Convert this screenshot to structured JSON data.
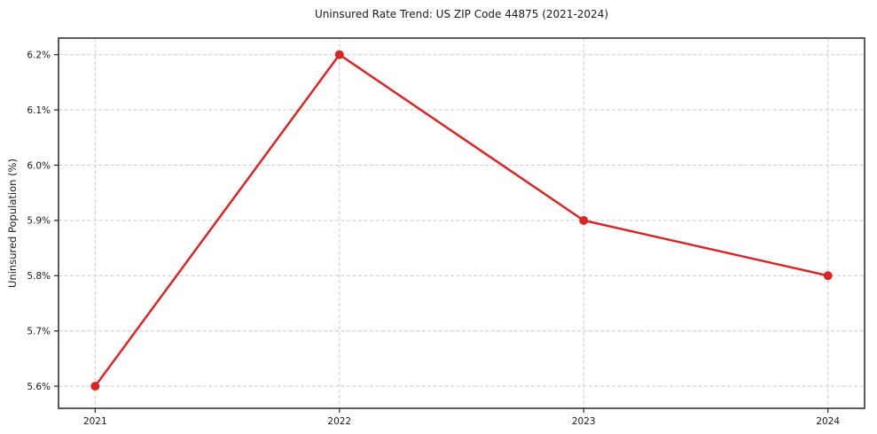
{
  "chart_data": {
    "type": "line",
    "title": "Uninsured Rate Trend: US ZIP Code 44875 (2021-2024)",
    "xlabel": "",
    "ylabel": "Uninsured Population (%)",
    "x": [
      2021,
      2022,
      2023,
      2024
    ],
    "series": [
      {
        "name": "Uninsured Population (%)",
        "values": [
          5.6,
          6.2,
          5.9,
          5.8
        ]
      }
    ],
    "xticks": [
      2021,
      2022,
      2023,
      2024
    ],
    "xtick_labels": [
      "2021",
      "2022",
      "2023",
      "2024"
    ],
    "yticks": [
      5.6,
      5.7,
      5.8,
      5.9,
      6.0,
      6.1,
      6.2
    ],
    "ytick_labels": [
      "5.6%",
      "5.7%",
      "5.8%",
      "5.9%",
      "6.0%",
      "6.1%",
      "6.2%"
    ],
    "xlim": [
      2020.85,
      2024.15
    ],
    "ylim": [
      5.56,
      6.23
    ],
    "grid": true,
    "grid_style": "dashed",
    "legend_position": "none",
    "colors": {
      "line": "#d62728",
      "marker": "#d62728",
      "grid": "#cccccc",
      "axes_border": "#262626",
      "tick": "#262626",
      "text": "#1a1a1a",
      "background": "#ffffff"
    },
    "marker": "circle",
    "line_width": 2.5,
    "marker_radius": 5
  }
}
